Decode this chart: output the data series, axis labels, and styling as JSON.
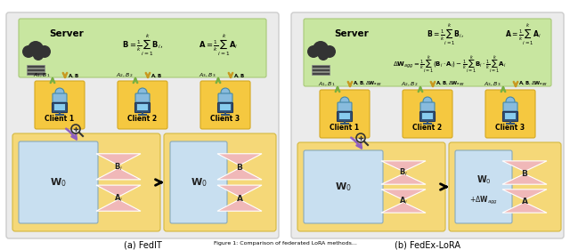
{
  "fig_width": 6.4,
  "fig_height": 2.81,
  "dpi": 100,
  "bg_outer": "#e8e8e8",
  "bg_white": "#ffffff",
  "server_green": "#c8e6a0",
  "server_green_edge": "#a8c878",
  "client_yellow": "#f5c840",
  "client_yellow_edge": "#d4a820",
  "model_yellow": "#f5d878",
  "model_yellow_edge": "#d4b840",
  "w_blue": "#c8dff0",
  "ab_pink": "#f0b8b8",
  "arrow_green": "#78b040",
  "arrow_gold": "#c89820",
  "arrow_purple": "#9060c0",
  "panel_a_label": "(a) FedIT",
  "panel_b_label": "(b) FedEx-LoRA",
  "caption": "Figure 1: Comparison of federated LoRA methods..."
}
